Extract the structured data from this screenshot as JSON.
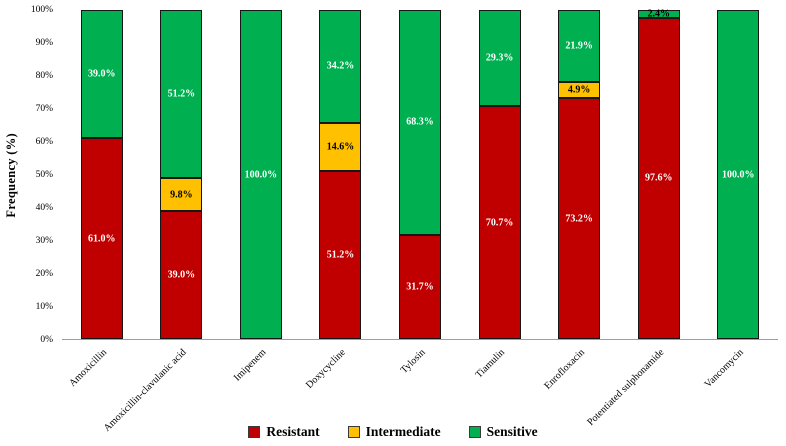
{
  "chart_data": {
    "type": "bar",
    "stacked": true,
    "title": "",
    "xlabel": "",
    "ylabel": "Frequency (%)",
    "ylim": [
      0,
      100
    ],
    "ytick_labels": [
      "0%",
      "10%",
      "20%",
      "30%",
      "40%",
      "50%",
      "60%",
      "70%",
      "80%",
      "90%",
      "100%"
    ],
    "grid": false,
    "legend_position": "bottom",
    "value_label_suffix": "%",
    "categories": [
      "Amoxicillin",
      "Amoxicillin-clavulanic acid",
      "Imipenem",
      "Doxycycline",
      "Tylosin",
      "Tiamulin",
      "Enrofloxacin",
      "Potentiated sulphonamide",
      "Vancomycin"
    ],
    "series": [
      {
        "name": "Resistant",
        "color": "#C00000",
        "label_color": "#FFFFFF",
        "values": [
          61.0,
          39.0,
          0,
          51.2,
          31.7,
          70.7,
          73.2,
          97.6,
          0
        ]
      },
      {
        "name": "Intermediate",
        "color": "#FFC000",
        "label_color": "#000000",
        "values": [
          0,
          9.8,
          0,
          14.6,
          0,
          0,
          4.9,
          0,
          0
        ]
      },
      {
        "name": "Sensitive",
        "color": "#00B050",
        "label_color": "#FFFFFF",
        "values": [
          39.0,
          51.2,
          100.0,
          34.2,
          68.3,
          29.3,
          21.9,
          2.4,
          100.0
        ]
      }
    ]
  }
}
